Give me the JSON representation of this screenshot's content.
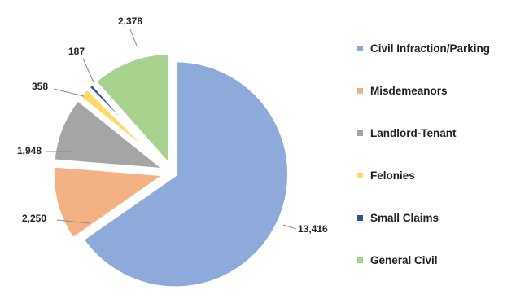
{
  "chart_data": {
    "type": "pie",
    "title": "",
    "categories": [
      "Civil Infraction/Parking",
      "Misdemeanors",
      "Landlord-Tenant",
      "Felonies",
      "Small Claims",
      "General Civil"
    ],
    "values": [
      13416,
      2250,
      1948,
      358,
      187,
      2378
    ],
    "value_labels": [
      "13,416",
      "2,250",
      "1,948",
      "358",
      "187",
      "2,378"
    ],
    "colors": [
      "#8eaadb",
      "#f4b183",
      "#a5a5a5",
      "#ffd966",
      "#2f5597",
      "#a9d18e"
    ],
    "legend": {
      "position": "right",
      "entries": [
        "Civil Infraction/Parking",
        "Misdemeanors",
        "Landlord-Tenant",
        "Felonies",
        "Small Claims",
        "General Civil"
      ]
    },
    "exploded": true,
    "data_labels": "outside with leader lines"
  }
}
